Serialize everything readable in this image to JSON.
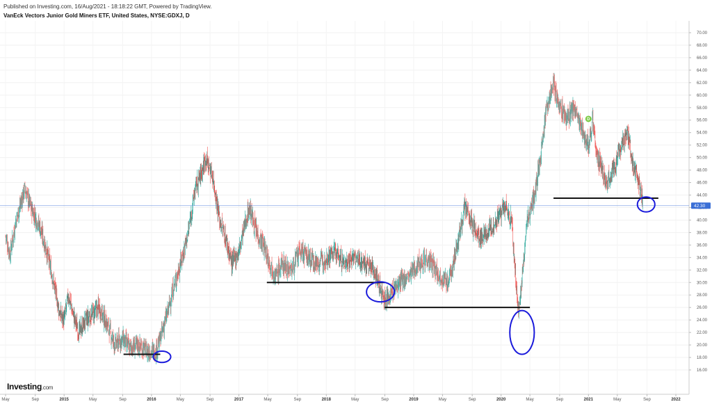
{
  "header": {
    "published": "Published on Investing.com, 16/Aug/2021 - 18:18:22 GMT, Powered by TradingView.",
    "title": "VanEck Vectors Junior Gold Miners ETF, United States, NYSE:GDXJ, D"
  },
  "logo": {
    "main": "Investing",
    "suffix": ".com"
  },
  "chart_data": {
    "type": "line",
    "style": "candlestick",
    "colors": {
      "up": "#26a69a",
      "down": "#ef5350",
      "trendline": "#111111",
      "circle": "#1a1adb",
      "price_line": "#3b6fd6",
      "marker": "#7ac943"
    },
    "current_price": "42.30",
    "marker_label": "D",
    "ylim": [
      16,
      72
    ],
    "ytick_labels": [
      "16.00",
      "18.00",
      "20.00",
      "22.00",
      "24.00",
      "26.00",
      "28.00",
      "30.00",
      "32.00",
      "34.00",
      "36.00",
      "38.00",
      "40.00",
      "42.00",
      "44.00",
      "46.00",
      "48.00",
      "50.00",
      "52.00",
      "54.00",
      "56.00",
      "58.00",
      "60.00",
      "62.00",
      "64.00",
      "66.00",
      "68.00",
      "70.00"
    ],
    "xticks": [
      {
        "label": "May",
        "t": 2014.33
      },
      {
        "label": "Sep",
        "t": 2014.67
      },
      {
        "label": "2015",
        "t": 2015.0,
        "year": true
      },
      {
        "label": "May",
        "t": 2015.33
      },
      {
        "label": "Sep",
        "t": 2015.67
      },
      {
        "label": "2016",
        "t": 2016.0,
        "year": true
      },
      {
        "label": "May",
        "t": 2016.33
      },
      {
        "label": "Sep",
        "t": 2016.67
      },
      {
        "label": "2017",
        "t": 2017.0,
        "year": true
      },
      {
        "label": "May",
        "t": 2017.33
      },
      {
        "label": "Sep",
        "t": 2017.67
      },
      {
        "label": "2018",
        "t": 2018.0,
        "year": true
      },
      {
        "label": "May",
        "t": 2018.33
      },
      {
        "label": "Sep",
        "t": 2018.67
      },
      {
        "label": "2019",
        "t": 2019.0,
        "year": true
      },
      {
        "label": "May",
        "t": 2019.33
      },
      {
        "label": "Sep",
        "t": 2019.67
      },
      {
        "label": "2020",
        "t": 2020.0,
        "year": true
      },
      {
        "label": "May",
        "t": 2020.33
      },
      {
        "label": "Sep",
        "t": 2020.67
      },
      {
        "label": "2021",
        "t": 2021.0,
        "year": true
      },
      {
        "label": "May",
        "t": 2021.33
      },
      {
        "label": "Sep",
        "t": 2021.67
      },
      {
        "label": "2022",
        "t": 2022.0,
        "year": true
      }
    ],
    "price_path": [
      [
        2014.33,
        37.5
      ],
      [
        2014.38,
        34.5
      ],
      [
        2014.45,
        40
      ],
      [
        2014.55,
        45
      ],
      [
        2014.62,
        42
      ],
      [
        2014.72,
        39
      ],
      [
        2014.8,
        35
      ],
      [
        2014.88,
        30
      ],
      [
        2014.95,
        25
      ],
      [
        2015.0,
        24
      ],
      [
        2015.05,
        28
      ],
      [
        2015.1,
        25
      ],
      [
        2015.17,
        22
      ],
      [
        2015.25,
        24
      ],
      [
        2015.33,
        25
      ],
      [
        2015.4,
        26
      ],
      [
        2015.5,
        23
      ],
      [
        2015.58,
        20
      ],
      [
        2015.67,
        21
      ],
      [
        2015.75,
        19.5
      ],
      [
        2015.85,
        20
      ],
      [
        2015.95,
        19
      ],
      [
        2016.05,
        19
      ],
      [
        2016.1,
        21
      ],
      [
        2016.18,
        25
      ],
      [
        2016.25,
        29
      ],
      [
        2016.35,
        34
      ],
      [
        2016.42,
        38
      ],
      [
        2016.5,
        45
      ],
      [
        2016.58,
        48
      ],
      [
        2016.62,
        50
      ],
      [
        2016.7,
        47
      ],
      [
        2016.78,
        40
      ],
      [
        2016.85,
        37
      ],
      [
        2016.92,
        33
      ],
      [
        2017.0,
        35
      ],
      [
        2017.08,
        40
      ],
      [
        2017.12,
        42
      ],
      [
        2017.2,
        38
      ],
      [
        2017.28,
        36
      ],
      [
        2017.33,
        34
      ],
      [
        2017.42,
        31
      ],
      [
        2017.5,
        33
      ],
      [
        2017.6,
        32
      ],
      [
        2017.7,
        35
      ],
      [
        2017.8,
        34
      ],
      [
        2017.9,
        33
      ],
      [
        2018.0,
        34
      ],
      [
        2018.1,
        35
      ],
      [
        2018.2,
        33
      ],
      [
        2018.3,
        34
      ],
      [
        2018.45,
        33
      ],
      [
        2018.55,
        32
      ],
      [
        2018.62,
        29
      ],
      [
        2018.68,
        27
      ],
      [
        2018.78,
        29
      ],
      [
        2018.85,
        30
      ],
      [
        2018.95,
        31
      ],
      [
        2019.05,
        33
      ],
      [
        2019.15,
        34
      ],
      [
        2019.3,
        31
      ],
      [
        2019.4,
        30
      ],
      [
        2019.5,
        36
      ],
      [
        2019.58,
        42
      ],
      [
        2019.65,
        40
      ],
      [
        2019.75,
        37
      ],
      [
        2019.85,
        38
      ],
      [
        2019.95,
        40
      ],
      [
        2020.05,
        42
      ],
      [
        2020.12,
        40
      ],
      [
        2020.17,
        30
      ],
      [
        2020.2,
        25
      ],
      [
        2020.25,
        32
      ],
      [
        2020.3,
        40
      ],
      [
        2020.38,
        44
      ],
      [
        2020.45,
        50
      ],
      [
        2020.52,
        58
      ],
      [
        2020.6,
        62
      ],
      [
        2020.67,
        58
      ],
      [
        2020.75,
        56
      ],
      [
        2020.83,
        58
      ],
      [
        2020.92,
        55
      ],
      [
        2021.0,
        52
      ],
      [
        2021.05,
        56
      ],
      [
        2021.1,
        50
      ],
      [
        2021.2,
        46
      ],
      [
        2021.28,
        48
      ],
      [
        2021.38,
        52
      ],
      [
        2021.45,
        54
      ],
      [
        2021.52,
        48
      ],
      [
        2021.58,
        46
      ],
      [
        2021.62,
        43
      ]
    ],
    "support_lines": [
      {
        "t0": 2015.68,
        "t1": 2016.1,
        "y": 18.5
      },
      {
        "t0": 2017.32,
        "t1": 2018.67,
        "y": 30
      },
      {
        "t0": 2018.67,
        "t1": 2020.33,
        "y": 26
      },
      {
        "t0": 2020.6,
        "t1": 2021.8,
        "y": 43.5
      }
    ],
    "circles": [
      {
        "t": 2016.12,
        "y": 18.1,
        "rt": 0.1,
        "ry": 0.9
      },
      {
        "t": 2018.62,
        "y": 28.5,
        "rt": 0.16,
        "ry": 1.6
      },
      {
        "t": 2020.24,
        "y": 22,
        "rt": 0.14,
        "ry": 3.5
      },
      {
        "t": 2021.66,
        "y": 42.5,
        "rt": 0.1,
        "ry": 1.2
      }
    ],
    "marker": {
      "t": 2021.0,
      "y": 56.2
    }
  }
}
